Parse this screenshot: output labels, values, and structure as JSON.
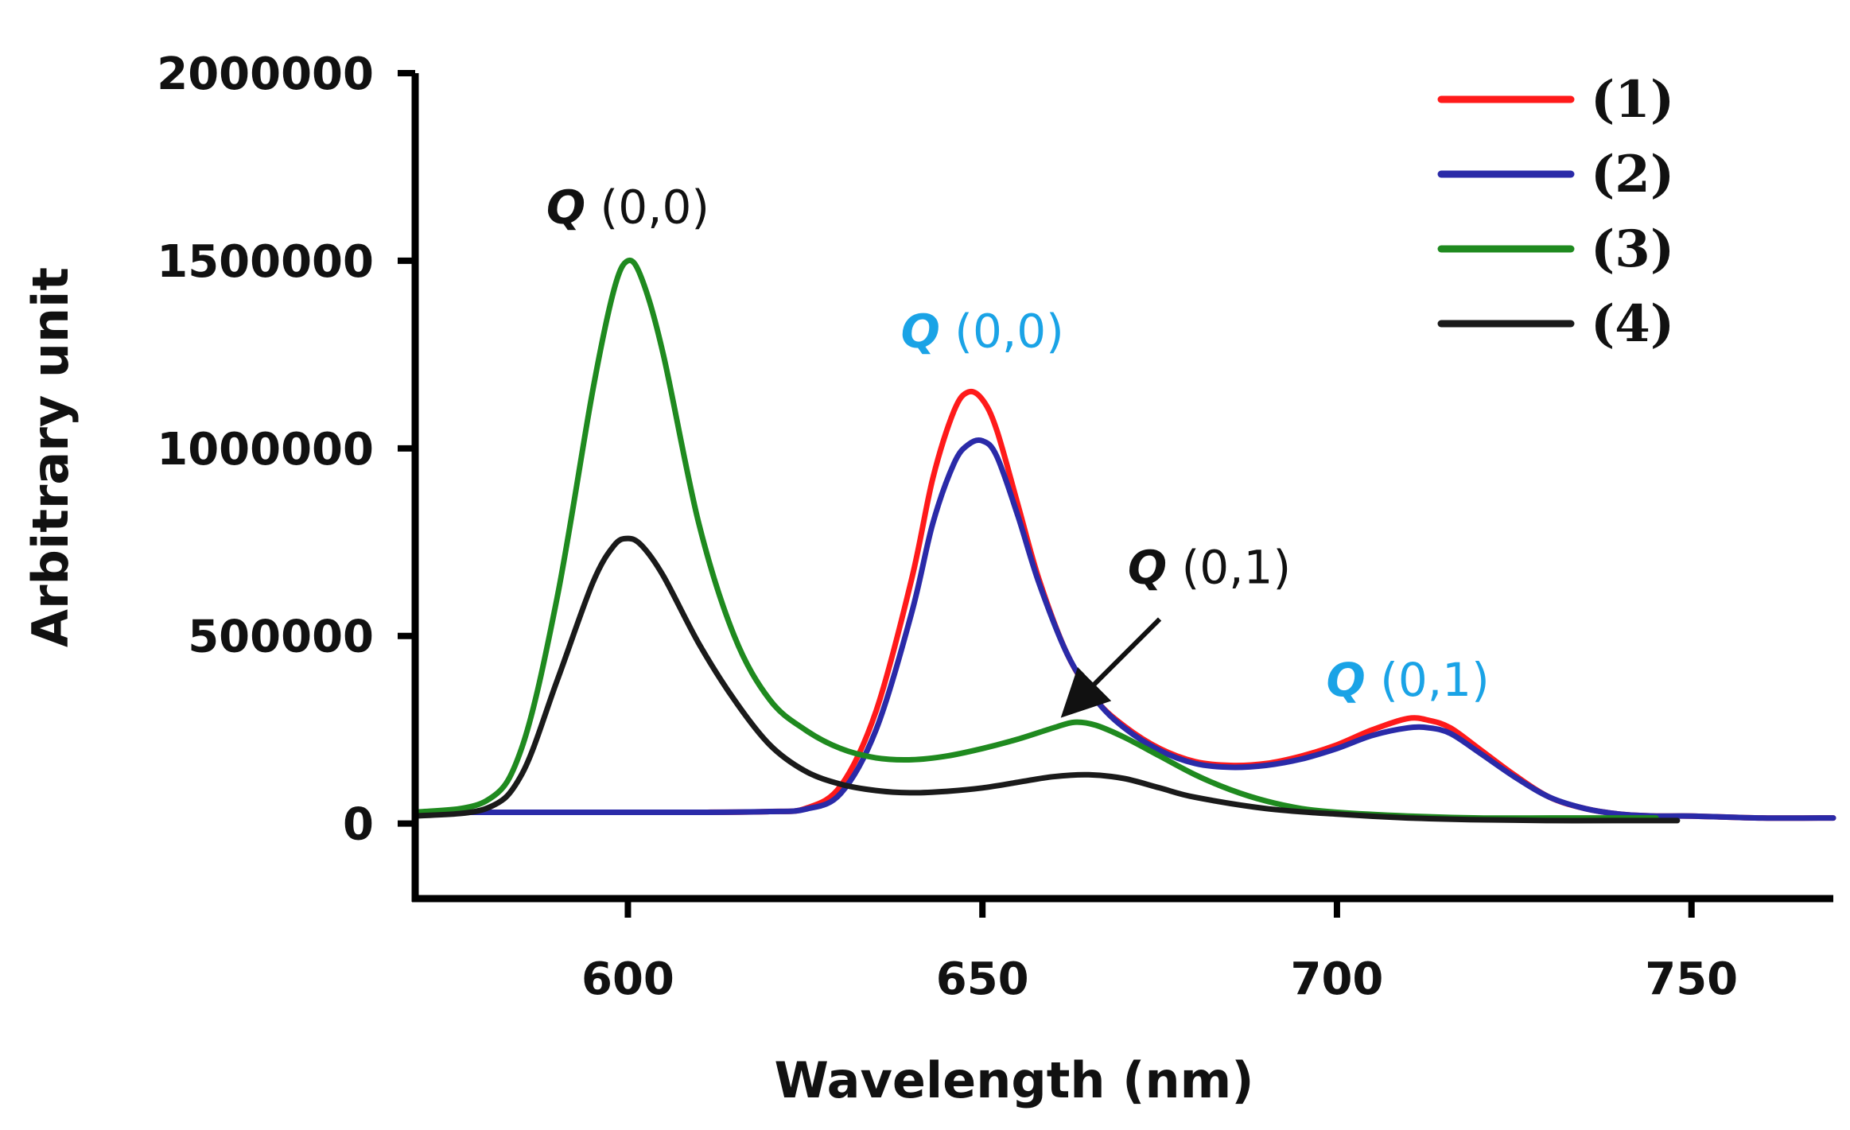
{
  "chart_data": {
    "type": "line",
    "title": "",
    "xlabel": "Wavelength (nm)",
    "ylabel": "Arbitrary unit",
    "xlim": [
      570,
      770
    ],
    "ylim": [
      -200000,
      2000000
    ],
    "xticks": [
      600,
      650,
      700,
      750
    ],
    "xtick_labels": [
      "600",
      "650",
      "700",
      "750"
    ],
    "yticks": [
      0,
      500000,
      1000000,
      1500000,
      2000000
    ],
    "ytick_labels": [
      "0",
      "500000",
      "1000000",
      "1500000",
      "2000000"
    ],
    "grid": false,
    "legend_position": "top-right",
    "series": [
      {
        "name": "(1)",
        "color": "#ff1a1a",
        "x": [
          570,
          590,
          610,
          620,
          625,
          630,
          635,
          640,
          643,
          646,
          648,
          650,
          652,
          655,
          658,
          662,
          666,
          670,
          675,
          680,
          685,
          690,
          695,
          700,
          705,
          710,
          713,
          716,
          720,
          725,
          730,
          735,
          740,
          745,
          750,
          760,
          770
        ],
        "values": [
          30000,
          30000,
          30000,
          32000,
          40000,
          100000,
          300000,
          650000,
          920000,
          1100000,
          1150000,
          1130000,
          1050000,
          850000,
          650000,
          450000,
          330000,
          260000,
          200000,
          165000,
          155000,
          160000,
          180000,
          210000,
          250000,
          280000,
          275000,
          255000,
          200000,
          130000,
          70000,
          40000,
          25000,
          20000,
          20000,
          15000,
          15000
        ]
      },
      {
        "name": "(2)",
        "color": "#2a2aa8",
        "x": [
          570,
          590,
          610,
          620,
          625,
          630,
          635,
          640,
          643,
          646,
          648,
          650,
          652,
          655,
          658,
          662,
          666,
          670,
          675,
          680,
          685,
          690,
          695,
          700,
          705,
          710,
          713,
          716,
          720,
          725,
          730,
          735,
          740,
          745,
          750,
          760,
          770
        ],
        "values": [
          30000,
          30000,
          30000,
          32000,
          38000,
          80000,
          250000,
          560000,
          800000,
          960000,
          1010000,
          1020000,
          980000,
          820000,
          640000,
          450000,
          330000,
          255000,
          195000,
          160000,
          150000,
          155000,
          172000,
          200000,
          235000,
          255000,
          255000,
          240000,
          190000,
          125000,
          70000,
          40000,
          25000,
          20000,
          20000,
          15000,
          15000
        ]
      },
      {
        "name": "(3)",
        "color": "#1f8a1f",
        "x": [
          570,
          580,
          585,
          590,
          595,
          598,
          600,
          602,
          605,
          610,
          615,
          620,
          625,
          630,
          635,
          640,
          645,
          650,
          655,
          660,
          663,
          666,
          670,
          675,
          680,
          685,
          690,
          695,
          700,
          710,
          720,
          730,
          740,
          745
        ],
        "values": [
          30000,
          60000,
          200000,
          600000,
          1150000,
          1420000,
          1500000,
          1450000,
          1250000,
          800000,
          500000,
          330000,
          250000,
          200000,
          175000,
          170000,
          180000,
          200000,
          225000,
          255000,
          270000,
          262000,
          230000,
          180000,
          130000,
          90000,
          60000,
          40000,
          30000,
          20000,
          15000,
          15000,
          15000,
          15000
        ]
      },
      {
        "name": "(4)",
        "color": "#1a1a1a",
        "x": [
          570,
          580,
          585,
          590,
          595,
          598,
          600,
          602,
          605,
          610,
          615,
          620,
          625,
          630,
          635,
          640,
          645,
          650,
          655,
          660,
          665,
          670,
          675,
          680,
          690,
          700,
          710,
          720,
          730,
          740,
          748
        ],
        "values": [
          20000,
          40000,
          130000,
          380000,
          640000,
          740000,
          760000,
          740000,
          660000,
          480000,
          330000,
          210000,
          140000,
          105000,
          88000,
          82000,
          86000,
          95000,
          110000,
          125000,
          130000,
          120000,
          95000,
          70000,
          40000,
          25000,
          15000,
          10000,
          8000,
          8000,
          8000
        ]
      }
    ],
    "annotations": [
      {
        "q": "Q",
        "rest": " (0,0)",
        "color": "#111111",
        "x": 600,
        "y": 1600000
      },
      {
        "q": "Q",
        "rest": " (0,0)",
        "color": "#1aa3e6",
        "x": 650,
        "y": 1270000
      },
      {
        "q": "Q",
        "rest": " (0,1)",
        "color": "#111111",
        "x": 682,
        "y": 640000
      },
      {
        "q": "Q",
        "rest": " (0,1)",
        "color": "#1aa3e6",
        "x": 710,
        "y": 340000
      }
    ],
    "arrow": {
      "from_x": 675,
      "from_y": 545000,
      "to_x": 662,
      "to_y": 300000,
      "color": "#111111"
    }
  }
}
